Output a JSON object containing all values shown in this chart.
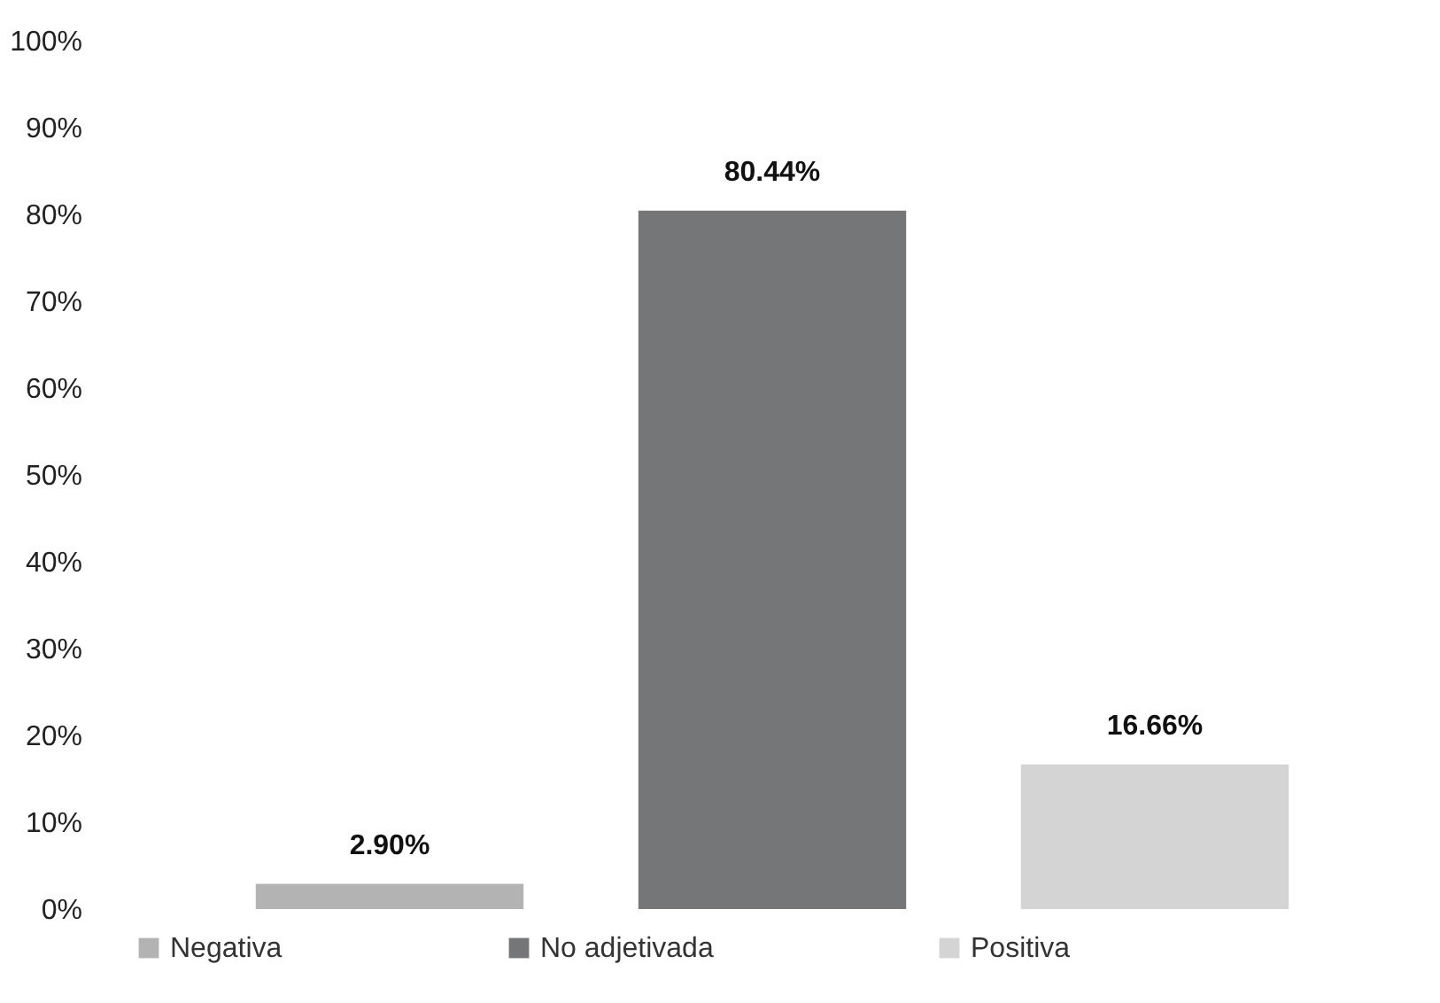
{
  "chart_data": {
    "type": "bar",
    "categories": [
      null
    ],
    "series": [
      {
        "name": "Negativa",
        "color": "#b3b3b3",
        "values": [
          2.9
        ],
        "value_labels": [
          "2.90%"
        ]
      },
      {
        "name": "No adjetivada",
        "color": "#747678",
        "values": [
          80.44
        ],
        "value_labels": [
          "80.44%"
        ]
      },
      {
        "name": "Positiva",
        "color": "#d4d4d4",
        "values": [
          16.66
        ],
        "value_labels": [
          "16.66%"
        ]
      }
    ],
    "ylim": [
      0,
      100
    ],
    "yticks": [
      {
        "value": 0,
        "label": "0%"
      },
      {
        "value": 10,
        "label": "10%"
      },
      {
        "value": 20,
        "label": "20%"
      },
      {
        "value": 30,
        "label": "30%"
      },
      {
        "value": 40,
        "label": "40%"
      },
      {
        "value": 50,
        "label": "50%"
      },
      {
        "value": 60,
        "label": "60%"
      },
      {
        "value": 70,
        "label": "70%"
      },
      {
        "value": 80,
        "label": "80%"
      },
      {
        "value": 90,
        "label": "90%"
      },
      {
        "value": 100,
        "label": "100%"
      }
    ],
    "legend": "bottom",
    "grid": false
  }
}
